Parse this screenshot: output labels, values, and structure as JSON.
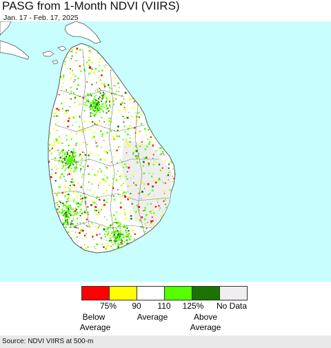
{
  "header": {
    "title": "PASG from 1-Month NDVI (VIIRS)",
    "date_range": "Jan. 17 - Feb. 17, 2025"
  },
  "map": {
    "water_color": "#c8fefe",
    "land_color": "#ffffff",
    "outline_color": "#555555"
  },
  "legend": {
    "swatches": [
      {
        "color": "#ff0000"
      },
      {
        "color": "#ffff00"
      },
      {
        "color": "#ffffff"
      },
      {
        "color": "#55ff00"
      },
      {
        "color": "#1b7300"
      },
      {
        "color": "#f0eef0"
      }
    ],
    "ticks": [
      "75%",
      "90",
      "110",
      "125%",
      "No Data"
    ],
    "groups": {
      "below": [
        "Below",
        "Average"
      ],
      "average": "Average",
      "above": [
        "Above",
        "Average"
      ]
    }
  },
  "footer": {
    "source": "Source: NDVI VIIRS at 500-m"
  }
}
